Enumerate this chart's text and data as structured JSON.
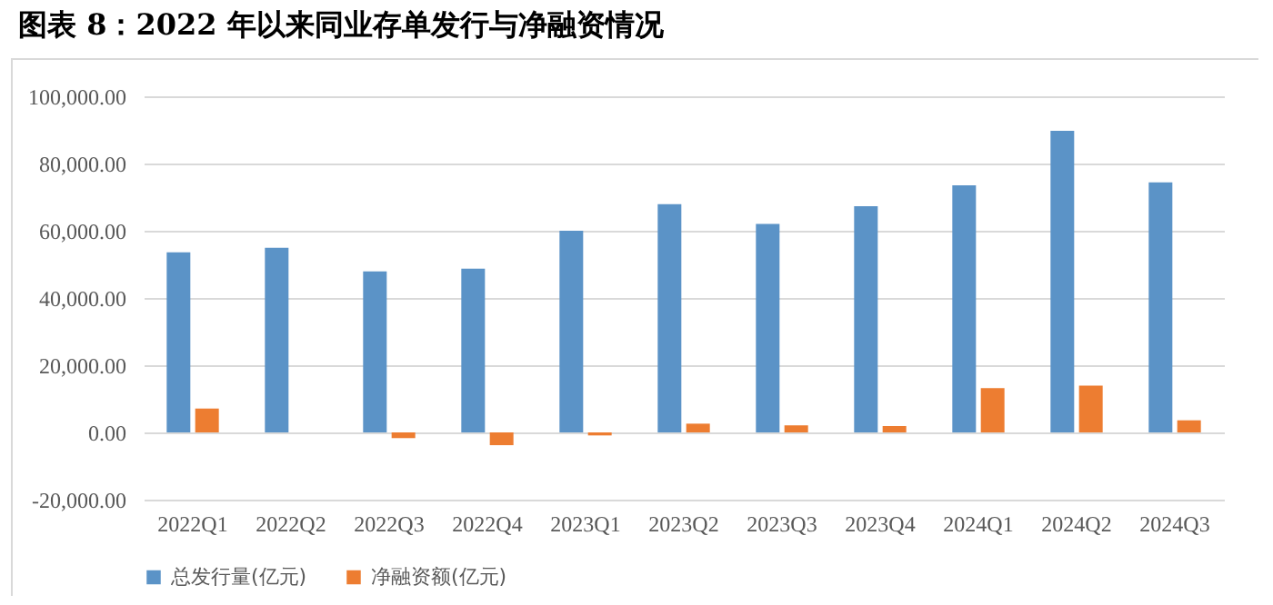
{
  "chart_data": {
    "type": "bar",
    "title": "图表 8：2022 年以来同业存单发行与净融资情况",
    "categories": [
      "2022Q1",
      "2022Q2",
      "2022Q3",
      "2022Q4",
      "2023Q1",
      "2023Q2",
      "2023Q3",
      "2023Q4",
      "2024Q1",
      "2024Q2",
      "2024Q3"
    ],
    "series": [
      {
        "name": "总发行量(亿元)",
        "color": "#5b93c7",
        "values": [
          53600,
          54900,
          47900,
          48700,
          60000,
          67900,
          62000,
          67300,
          73500,
          89700,
          74400
        ]
      },
      {
        "name": "净融资额(亿元)",
        "color": "#ed7d31",
        "values": [
          7100,
          0,
          -1700,
          -3800,
          -900,
          2600,
          2100,
          1900,
          13200,
          13900,
          3600
        ]
      }
    ],
    "ylim": [
      -20000,
      100000
    ],
    "yticks": [
      {
        "value": -20000,
        "label": "-20,000.00"
      },
      {
        "value": 0,
        "label": "0.00"
      },
      {
        "value": 20000,
        "label": "20,000.00"
      },
      {
        "value": 40000,
        "label": "40,000.00"
      },
      {
        "value": 60000,
        "label": "60,000.00"
      },
      {
        "value": 80000,
        "label": "80,000.00"
      },
      {
        "value": 100000,
        "label": "100,000.00"
      }
    ],
    "grid": "y",
    "legend": "bottom"
  }
}
